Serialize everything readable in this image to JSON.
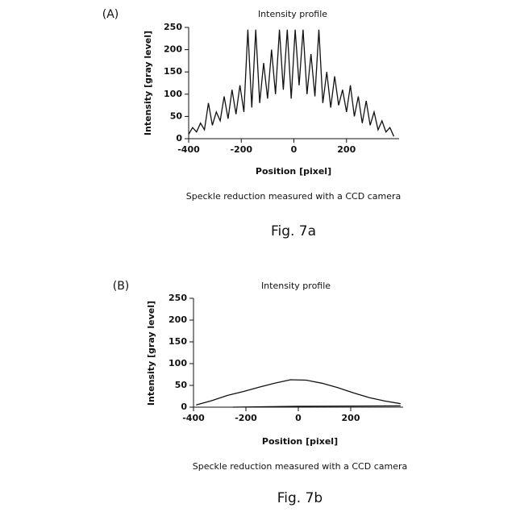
{
  "chart_data": [
    {
      "type": "line",
      "panel_label": "(A)",
      "title": "Intensity profile",
      "xlabel": "Position [pixel]",
      "ylabel": "Intensity [gray level]",
      "caption": "Speckle reduction measured with a CCD camera",
      "figure_label": "Fig. 7a",
      "xlim": [
        -400,
        400
      ],
      "ylim": [
        0,
        250
      ],
      "xticks": [
        -400,
        -200,
        0,
        200
      ],
      "yticks": [
        0,
        50,
        100,
        150,
        200,
        250
      ],
      "grid": false,
      "series": [
        {
          "color": "#111111",
          "x": [
            -400,
            -385,
            -370,
            -355,
            -340,
            -325,
            -310,
            -295,
            -280,
            -265,
            -250,
            -235,
            -220,
            -205,
            -190,
            -175,
            -160,
            -145,
            -130,
            -115,
            -100,
            -85,
            -70,
            -55,
            -40,
            -25,
            -10,
            5,
            20,
            35,
            50,
            65,
            80,
            95,
            110,
            125,
            140,
            155,
            170,
            185,
            200,
            215,
            230,
            245,
            260,
            275,
            290,
            305,
            320,
            335,
            350,
            365,
            380
          ],
          "values": [
            10,
            25,
            15,
            35,
            20,
            80,
            30,
            60,
            40,
            95,
            45,
            110,
            55,
            120,
            60,
            245,
            70,
            245,
            80,
            170,
            90,
            200,
            100,
            245,
            110,
            245,
            90,
            245,
            120,
            245,
            100,
            190,
            95,
            245,
            80,
            150,
            70,
            140,
            75,
            110,
            60,
            120,
            50,
            95,
            35,
            85,
            30,
            60,
            20,
            40,
            15,
            25,
            5
          ]
        }
      ]
    },
    {
      "type": "line",
      "panel_label": "(B)",
      "title": "Intensity profile",
      "xlabel": "Position [pixel]",
      "ylabel": "Intensity [gray level]",
      "caption": "Speckle reduction measured with a CCD camera",
      "figure_label": "Fig. 7b",
      "xlim": [
        -400,
        400
      ],
      "ylim": [
        0,
        250
      ],
      "xticks": [
        -400,
        -200,
        0,
        200
      ],
      "yticks": [
        0,
        50,
        100,
        150,
        200,
        250
      ],
      "grid": false,
      "series": [
        {
          "color": "#111111",
          "x": [
            -390,
            -330,
            -270,
            -210,
            -150,
            -90,
            -30,
            30,
            90,
            150,
            210,
            270,
            330,
            390
          ],
          "values": [
            5,
            15,
            27,
            36,
            46,
            55,
            63,
            62,
            55,
            45,
            33,
            22,
            14,
            8
          ]
        },
        {
          "color": "#111111",
          "x": [
            -250,
            0,
            390
          ],
          "values": [
            0,
            2,
            3
          ]
        }
      ]
    }
  ]
}
